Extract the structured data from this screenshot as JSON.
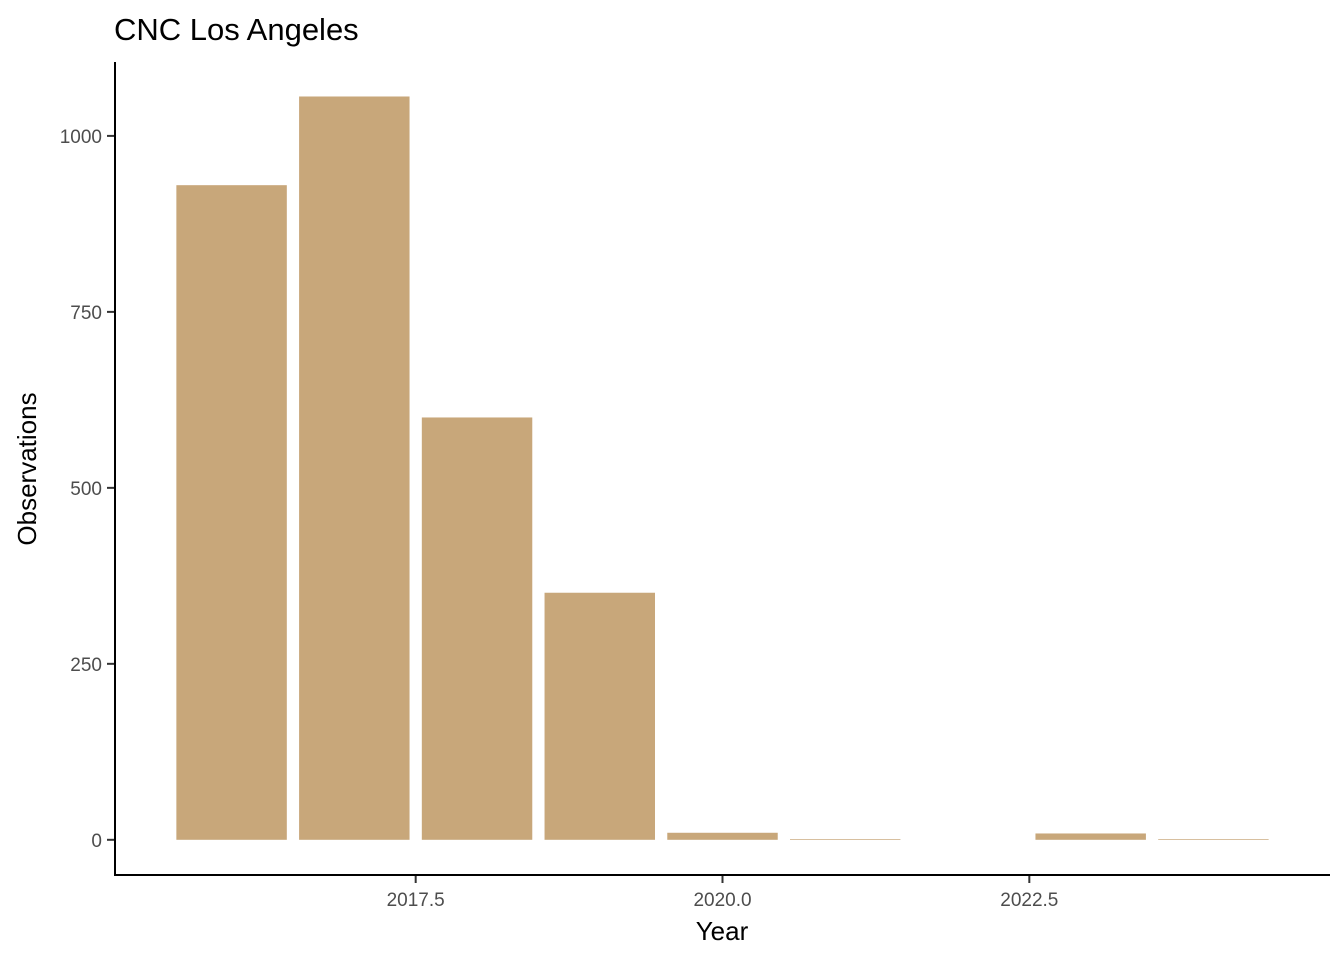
{
  "chart_data": {
    "type": "bar",
    "title": "CNC Los Angeles",
    "xlabel": "Year",
    "ylabel": "Observations",
    "x": [
      2016,
      2017,
      2018,
      2019,
      2020,
      2021,
      2023,
      2024
    ],
    "values": [
      930,
      1056,
      600,
      351,
      10,
      1,
      9,
      1
    ],
    "bar_color": "#C8A77A",
    "xlim": [
      2015.05,
      2024.95
    ],
    "ylim": [
      -50,
      1105
    ],
    "xticks": [
      2017.5,
      2020.0,
      2022.5
    ],
    "xtick_labels": [
      "2017.5",
      "2020.0",
      "2022.5"
    ],
    "yticks": [
      0,
      250,
      500,
      750,
      1000
    ],
    "ytick_labels": [
      "0",
      "250",
      "500",
      "750",
      "1000"
    ],
    "grid": false,
    "legend": "none"
  }
}
